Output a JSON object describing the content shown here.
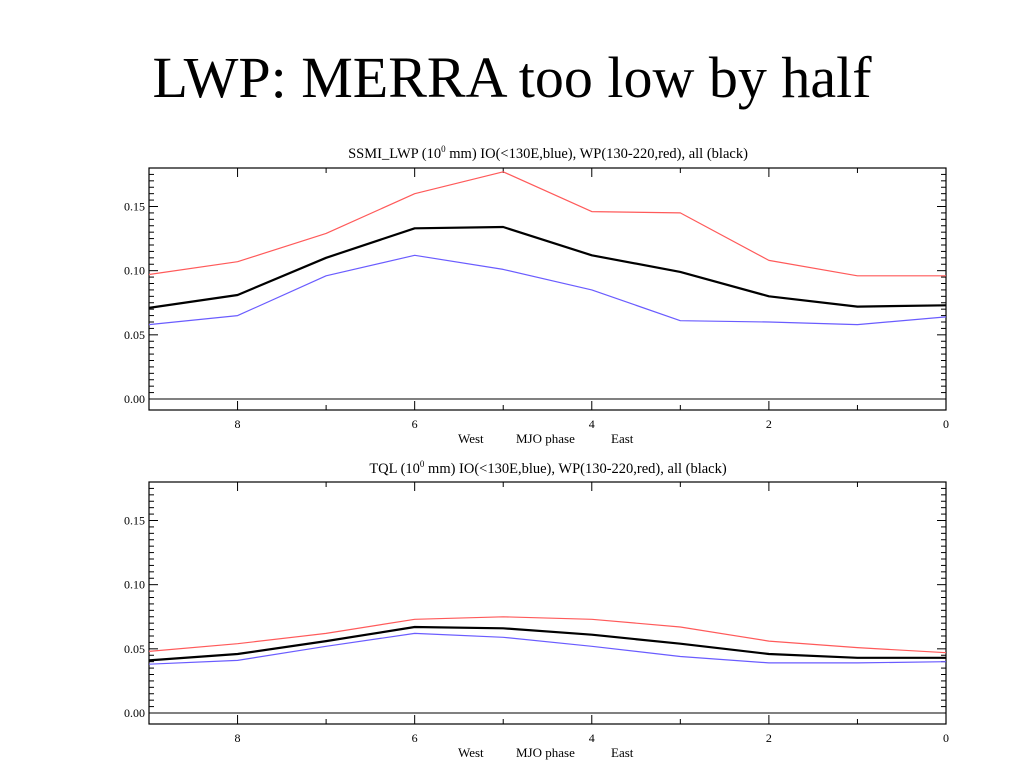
{
  "slide": {
    "title": "LWP: MERRA too low by half"
  },
  "chart_data": [
    {
      "type": "line",
      "title_prefix": "SSMI_LWP (10",
      "title_exp": "0",
      "title_suffix": " mm) IO(<130E,blue), WP(130-220,red), all (black)",
      "xlabel_parts": [
        "West",
        "MJO phase",
        "East"
      ],
      "x": [
        9,
        8,
        7,
        6,
        5,
        4,
        3,
        2,
        1,
        0
      ],
      "xticks": [
        "8",
        "6",
        "4",
        "2",
        "0"
      ],
      "xlim": [
        9,
        0
      ],
      "ylim": [
        0,
        0.18
      ],
      "yticks": [
        "0.00",
        "0.05",
        "0.10",
        "0.15"
      ],
      "series": [
        {
          "color": "#ff5a5a",
          "values": [
            0.097,
            0.107,
            0.129,
            0.16,
            0.177,
            0.146,
            0.145,
            0.108,
            0.096,
            0.096
          ]
        },
        {
          "color": "#000000",
          "values": [
            0.071,
            0.081,
            0.11,
            0.133,
            0.134,
            0.112,
            0.099,
            0.08,
            0.072,
            0.073
          ]
        },
        {
          "color": "#6a5cff",
          "values": [
            0.058,
            0.065,
            0.096,
            0.112,
            0.101,
            0.085,
            0.061,
            0.06,
            0.058,
            0.064
          ]
        }
      ]
    },
    {
      "type": "line",
      "title_prefix": "TQL (10",
      "title_exp": "0",
      "title_suffix": " mm) IO(<130E,blue), WP(130-220,red), all (black)",
      "xlabel_parts": [
        "West",
        "MJO phase",
        "East"
      ],
      "x": [
        9,
        8,
        7,
        6,
        5,
        4,
        3,
        2,
        1,
        0
      ],
      "xticks": [
        "8",
        "6",
        "4",
        "2",
        "0"
      ],
      "xlim": [
        9,
        0
      ],
      "ylim": [
        0,
        0.18
      ],
      "yticks": [
        "0.00",
        "0.05",
        "0.10",
        "0.15"
      ],
      "series": [
        {
          "color": "#ff5a5a",
          "values": [
            0.048,
            0.054,
            0.062,
            0.073,
            0.075,
            0.073,
            0.067,
            0.056,
            0.051,
            0.047
          ]
        },
        {
          "color": "#000000",
          "values": [
            0.041,
            0.046,
            0.056,
            0.067,
            0.066,
            0.061,
            0.054,
            0.046,
            0.043,
            0.043
          ]
        },
        {
          "color": "#6a5cff",
          "values": [
            0.038,
            0.041,
            0.052,
            0.062,
            0.059,
            0.052,
            0.044,
            0.039,
            0.039,
            0.04
          ]
        }
      ]
    }
  ]
}
